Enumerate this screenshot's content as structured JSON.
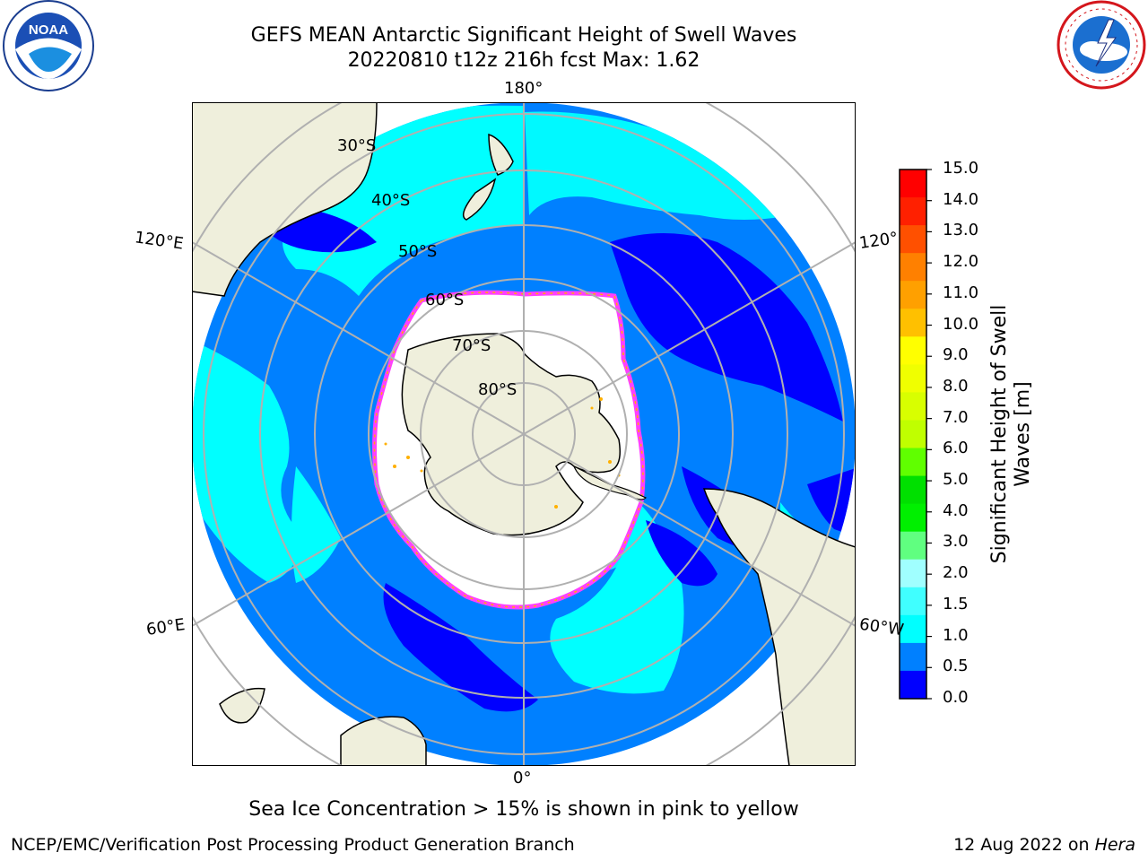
{
  "title": "GEFS MEAN Antarctic Significant Height of Swell Waves",
  "subtitle": "20220810 t12z 216h fcst   Max: 1.62",
  "logos": {
    "left": "noaa-logo",
    "right": "national-weather-service-logo"
  },
  "map": {
    "projection": "south-polar-stereographic",
    "meridian_labels": {
      "top": "180°",
      "bottom": "0°",
      "left_upper": "120°E",
      "left_lower": "60°E",
      "right_upper": "120°",
      "right_lower": "60°W"
    },
    "parallel_labels": [
      "30°S",
      "40°S",
      "50°S",
      "60°S",
      "70°S",
      "80°S"
    ],
    "colors": {
      "land": "#efefdc",
      "ice": "#ffffff",
      "ocean_0_05": "#0000ff",
      "ocean_05_1": "#0080ff",
      "ocean_1_15": "#00ffff",
      "ice_edge": "#ff40ff",
      "ice_spots": "#ffb000",
      "grid": "#b0b0b0"
    }
  },
  "colorbar": {
    "label": "Significant Height of Swell Waves [m]",
    "label_line1": "Significant Height of Swell",
    "label_line2": "Waves [m]",
    "ticks": [
      "15.0",
      "14.0",
      "13.0",
      "12.0",
      "11.0",
      "10.0",
      "9.0",
      "8.0",
      "7.0",
      "6.0",
      "5.0",
      "4.0",
      "3.0",
      "2.0",
      "1.5",
      "1.0",
      "0.5",
      "0.0"
    ],
    "bands": [
      "#ff0000",
      "#ff2000",
      "#ff5000",
      "#ff8000",
      "#ffa000",
      "#ffc000",
      "#ffff00",
      "#f0ff00",
      "#d8ff00",
      "#c0ff00",
      "#60ff00",
      "#00e000",
      "#00f000",
      "#60ff80",
      "#a0ffff",
      "#40ffff",
      "#00ffff",
      "#0080ff",
      "#0000ff"
    ]
  },
  "ice_note": "Sea Ice Concentration > 15% is shown in pink to yellow",
  "footer": {
    "credit": "NCEP/EMC/Verification Post Processing Product Generation Branch",
    "date": "12 Aug 2022 on",
    "host": "Hera"
  }
}
